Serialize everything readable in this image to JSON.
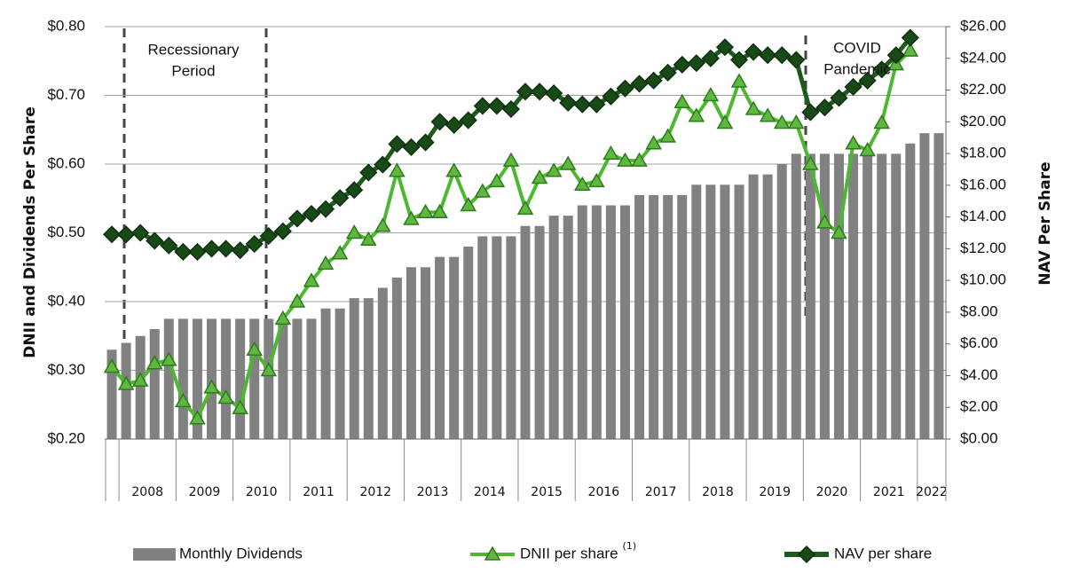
{
  "chart_data": {
    "type": "bar-line",
    "y_label": "DNII and Dividends Per Share",
    "y2_label": "NAV Per Share",
    "ylim": [
      0.2,
      0.8
    ],
    "yticks": [
      {
        "value": 0.2,
        "label": "$0.20"
      },
      {
        "value": 0.3,
        "label": "$0.30"
      },
      {
        "value": 0.4,
        "label": "$0.40"
      },
      {
        "value": 0.5,
        "label": "$0.50"
      },
      {
        "value": 0.6,
        "label": "$0.60"
      },
      {
        "value": 0.7,
        "label": "$0.70"
      },
      {
        "value": 0.8,
        "label": "$0.80"
      }
    ],
    "y2lim": [
      0,
      26
    ],
    "y2ticks": [
      {
        "value": 0,
        "label": "$0.00"
      },
      {
        "value": 2,
        "label": "$2.00"
      },
      {
        "value": 4,
        "label": "$4.00"
      },
      {
        "value": 6,
        "label": "$6.00"
      },
      {
        "value": 8,
        "label": "$8.00"
      },
      {
        "value": 10,
        "label": "$10.00"
      },
      {
        "value": 12,
        "label": "$12.00"
      },
      {
        "value": 14,
        "label": "$14.00"
      },
      {
        "value": 16,
        "label": "$16.00"
      },
      {
        "value": 18,
        "label": "$18.00"
      },
      {
        "value": 20,
        "label": "$20.00"
      },
      {
        "value": 22,
        "label": "$22.00"
      },
      {
        "value": 24,
        "label": "$24.00"
      },
      {
        "value": 26,
        "label": "$26.00"
      }
    ],
    "grid": true,
    "year_groups": [
      {
        "label": "2008",
        "span": 4
      },
      {
        "label": "2009",
        "span": 4
      },
      {
        "label": "2010",
        "span": 4
      },
      {
        "label": "2011",
        "span": 4
      },
      {
        "label": "2012",
        "span": 4
      },
      {
        "label": "2013",
        "span": 4
      },
      {
        "label": "2014",
        "span": 4
      },
      {
        "label": "2015",
        "span": 4
      },
      {
        "label": "2016",
        "span": 4
      },
      {
        "label": "2017",
        "span": 4
      },
      {
        "label": "2018",
        "span": 4
      },
      {
        "label": "2019",
        "span": 4
      },
      {
        "label": "2020",
        "span": 4
      },
      {
        "label": "2021",
        "span": 4
      },
      {
        "label": "2022",
        "span": 2
      }
    ],
    "annotations": [
      {
        "lines": [
          "Recessionary",
          "Period"
        ]
      },
      {
        "lines": [
          "COVID",
          "Pandemic"
        ]
      }
    ],
    "legend_note": "(1)",
    "series": [
      {
        "name": "Monthly Dividends",
        "type": "bar",
        "color": "#818181",
        "values": [
          0.33,
          0.34,
          0.35,
          0.36,
          0.375,
          0.375,
          0.375,
          0.375,
          0.375,
          0.375,
          0.375,
          0.375,
          0.375,
          0.375,
          0.375,
          0.39,
          0.39,
          0.405,
          0.405,
          0.42,
          0.435,
          0.45,
          0.45,
          0.465,
          0.465,
          0.48,
          0.495,
          0.495,
          0.495,
          0.51,
          0.51,
          0.525,
          0.525,
          0.54,
          0.54,
          0.54,
          0.54,
          0.555,
          0.555,
          0.555,
          0.555,
          0.57,
          0.57,
          0.57,
          0.57,
          0.585,
          0.585,
          0.6,
          0.615,
          0.615,
          0.615,
          0.615,
          0.615,
          0.615,
          0.615,
          0.615,
          0.63,
          0.645,
          0.645
        ]
      },
      {
        "name": "DNII per share",
        "type": "line",
        "marker": "triangle",
        "color": "#4cb830",
        "values": [
          0.305,
          0.28,
          0.285,
          0.31,
          0.315,
          0.255,
          0.23,
          0.275,
          0.26,
          0.245,
          0.33,
          0.3,
          0.375,
          0.4,
          0.43,
          0.455,
          0.47,
          0.5,
          0.49,
          0.51,
          0.59,
          0.52,
          0.53,
          0.53,
          0.59,
          0.54,
          0.56,
          0.575,
          0.605,
          0.535,
          0.58,
          0.59,
          0.6,
          0.57,
          0.575,
          0.615,
          0.605,
          0.605,
          0.63,
          0.64,
          0.69,
          0.67,
          0.7,
          0.66,
          0.72,
          0.68,
          0.67,
          0.66,
          0.66,
          0.6,
          0.515,
          0.5,
          0.63,
          0.62,
          0.66,
          0.745,
          0.765,
          null,
          null
        ]
      },
      {
        "name": "NAV per share",
        "type": "line",
        "axis": "y2",
        "marker": "diamond",
        "color": "#1d5a1d",
        "values": [
          12.9,
          12.9,
          13.0,
          12.5,
          12.2,
          11.8,
          11.8,
          12.0,
          12.0,
          11.9,
          12.3,
          12.8,
          13.1,
          13.9,
          14.2,
          14.5,
          15.2,
          15.7,
          16.8,
          17.3,
          18.6,
          18.4,
          18.7,
          20.0,
          19.8,
          20.1,
          21.0,
          21.0,
          20.8,
          21.9,
          21.9,
          21.8,
          21.2,
          21.1,
          21.1,
          21.6,
          22.1,
          22.4,
          22.6,
          23.1,
          23.6,
          23.7,
          24.0,
          24.7,
          23.9,
          24.4,
          24.2,
          24.2,
          23.9,
          20.6,
          20.9,
          21.5,
          22.2,
          22.6,
          23.3,
          24.2,
          25.3,
          null,
          null
        ]
      }
    ]
  }
}
